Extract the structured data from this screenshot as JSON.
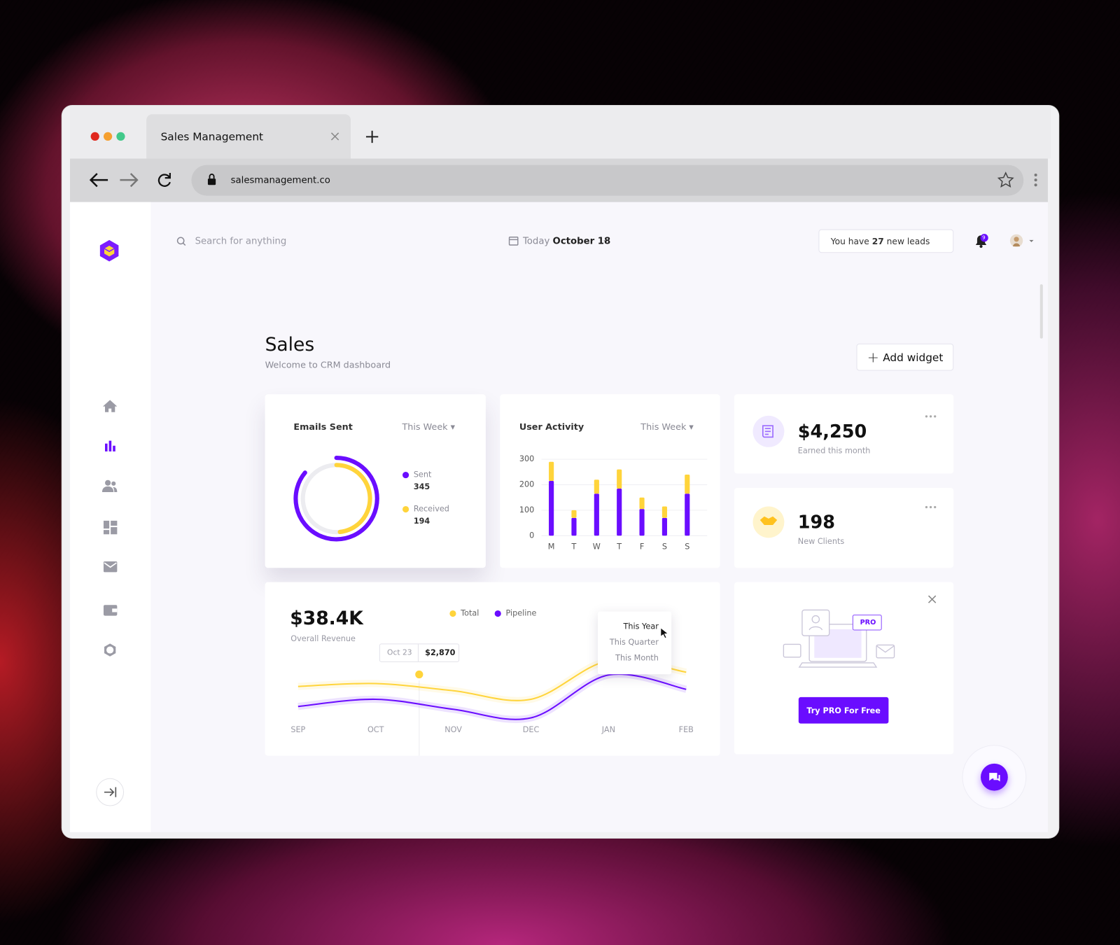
{
  "browser": {
    "tab_title": "Sales Management",
    "url": "salesmanagement.co"
  },
  "topbar": {
    "search_placeholder": "Search for anything",
    "date_prefix": "Today",
    "date": "October 18",
    "leads": {
      "prefix": "You have",
      "count": 27,
      "suffix": "new leads"
    },
    "notifications": 9
  },
  "header": {
    "title": "Sales",
    "subtitle": "Welcome to CRM dashboard",
    "add_widget": "Add widget"
  },
  "stats": [
    {
      "value": "$4,250",
      "label": "Earned this month"
    },
    {
      "value": "198",
      "label": "New Clients"
    }
  ],
  "promo": {
    "badge": "PRO",
    "button": "Try PRO For Free"
  },
  "chart_data": [
    {
      "type": "radial-bar",
      "title": "Emails Sent",
      "period": "This Week",
      "categories": [
        "Sent",
        "Received"
      ],
      "values": [
        345,
        194
      ],
      "colors": [
        "#6a0dff",
        "#ffd43b"
      ]
    },
    {
      "type": "bar",
      "stacked": true,
      "title": "User Activity",
      "period": "This Week",
      "categories": [
        "M",
        "T",
        "W",
        "T",
        "F",
        "S",
        "S"
      ],
      "series": [
        {
          "color": "#6a0dff",
          "values": [
            215,
            70,
            165,
            185,
            105,
            70,
            165
          ]
        },
        {
          "color": "#ffd43b",
          "values": [
            75,
            30,
            55,
            75,
            45,
            45,
            75
          ]
        }
      ],
      "ylim": [
        0,
        300
      ],
      "yticks": [
        0,
        100,
        200,
        300
      ],
      "grid": true
    },
    {
      "type": "line",
      "title": "$38.4K",
      "subtitle": "Overall Revenue",
      "categories": [
        "SEP",
        "OCT",
        "NOV",
        "DEC",
        "JAN",
        "FEB"
      ],
      "series": [
        {
          "name": "Total",
          "color": "#ffd43b",
          "values": [
            2450,
            2550,
            2300,
            2000,
            3350,
            2950
          ]
        },
        {
          "name": "Pipeline",
          "color": "#6a0dff",
          "values": [
            1750,
            2000,
            1650,
            1350,
            2850,
            2350
          ]
        }
      ],
      "annotation": {
        "label": "Oct 23",
        "value": 2870,
        "value_label": "$2,870"
      },
      "menu": [
        "This Year",
        "This Quarter",
        "This Month"
      ]
    }
  ]
}
